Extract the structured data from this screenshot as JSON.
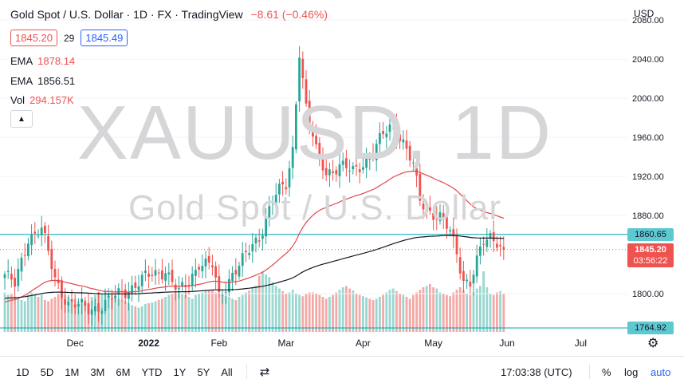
{
  "legend": {
    "symbol_name": "Gold Spot / U.S. Dollar",
    "interval": "1D",
    "exchange": "FX",
    "provider": "TradingView",
    "change": "−8.61 (−0.46%)"
  },
  "prices": {
    "bid": "1845.20",
    "spread": "29",
    "ask": "1845.49"
  },
  "indicators": [
    {
      "name": "EMA",
      "value": "1878.14",
      "color": "#ef5350"
    },
    {
      "name": "EMA",
      "value": "1856.51",
      "color": "#131722"
    },
    {
      "name": "Vol",
      "value": "294.157K",
      "color": "#ef5350"
    }
  ],
  "watermark": {
    "main": "XAUUSD, 1D",
    "sub": "Gold Spot / U.S. Dollar"
  },
  "axis": {
    "currency": "USD",
    "price_labels": [
      "2080.00",
      "2040.00",
      "2000.00",
      "1960.00",
      "1920.00",
      "1880.00",
      "1800.00"
    ],
    "horizontal_line_upper": "1860.65",
    "horizontal_line_lower": "1764.92",
    "last_price": "1845.20",
    "countdown": "03:56:22",
    "time_labels": [
      "Dec",
      "2022",
      "Feb",
      "Mar",
      "Apr",
      "May",
      "Jun",
      "Jul"
    ]
  },
  "toolbar": {
    "timeframes": [
      "1D",
      "5D",
      "1M",
      "3M",
      "6M",
      "YTD",
      "1Y",
      "5Y",
      "All"
    ],
    "clock": "17:03:38 (UTC)",
    "percent": "%",
    "log": "log",
    "auto": "auto"
  },
  "colors": {
    "up": "#26a69a",
    "down": "#ef5350",
    "hline": "#00a6b3",
    "ema_fast": "#e0474c",
    "ema_slow": "#131722",
    "accent": "#2962ff"
  },
  "chart_data": {
    "type": "candlestick",
    "ylim": [
      1760,
      2090
    ],
    "hlines": [
      1860.65,
      1764.92
    ],
    "last_price": 1845.2,
    "x_ticks": [
      {
        "label": "Dec",
        "index": 21
      },
      {
        "label": "2022",
        "index": 43
      },
      {
        "label": "Feb",
        "index": 64
      },
      {
        "label": "Mar",
        "index": 84
      },
      {
        "label": "Apr",
        "index": 107
      },
      {
        "label": "May",
        "index": 128
      },
      {
        "label": "Jun",
        "index": 150
      },
      {
        "label": "Jul",
        "index": 172
      }
    ],
    "anchors": [
      [
        0,
        1820
      ],
      [
        3,
        1808
      ],
      [
        7,
        1858
      ],
      [
        11,
        1866
      ],
      [
        15,
        1815
      ],
      [
        19,
        1790
      ],
      [
        25,
        1784
      ],
      [
        30,
        1790
      ],
      [
        36,
        1803
      ],
      [
        42,
        1816
      ],
      [
        45,
        1820
      ],
      [
        48,
        1825
      ],
      [
        52,
        1800
      ],
      [
        55,
        1812
      ],
      [
        58,
        1833
      ],
      [
        62,
        1828
      ],
      [
        64,
        1795
      ],
      [
        68,
        1822
      ],
      [
        72,
        1838
      ],
      [
        76,
        1858
      ],
      [
        80,
        1898
      ],
      [
        84,
        1910
      ],
      [
        86,
        1948
      ],
      [
        88,
        2050
      ],
      [
        90,
        1990
      ],
      [
        93,
        1945
      ],
      [
        96,
        1925
      ],
      [
        100,
        1930
      ],
      [
        104,
        1925
      ],
      [
        107,
        1935
      ],
      [
        110,
        1943
      ],
      [
        113,
        1962
      ],
      [
        116,
        1975
      ],
      [
        119,
        1955
      ],
      [
        122,
        1930
      ],
      [
        124,
        1895
      ],
      [
        127,
        1885
      ],
      [
        130,
        1878
      ],
      [
        133,
        1862
      ],
      [
        135,
        1842
      ],
      [
        137,
        1815
      ],
      [
        139,
        1812
      ],
      [
        141,
        1832
      ],
      [
        143,
        1852
      ],
      [
        145,
        1858
      ],
      [
        147,
        1856
      ],
      [
        149,
        1845.2
      ]
    ],
    "volume": {
      "values": [
        62,
        58,
        60,
        55,
        52,
        50,
        48,
        58,
        62,
        60,
        55,
        58,
        50,
        48,
        52,
        55,
        60,
        62,
        58,
        55,
        50,
        52,
        48,
        45,
        50,
        46,
        55,
        58,
        62,
        60,
        64,
        60,
        58,
        55,
        52,
        50,
        48,
        45,
        42,
        40,
        38,
        40,
        44,
        45,
        46,
        48,
        50,
        52,
        55,
        58,
        60,
        62,
        64,
        60,
        58,
        55,
        52,
        58,
        60,
        62,
        64,
        66,
        65,
        62,
        60,
        58,
        56,
        55,
        52,
        50,
        55,
        58,
        62,
        65,
        70,
        72,
        88,
        95,
        90,
        86,
        78,
        72,
        68,
        64,
        60,
        62,
        66,
        60,
        58,
        56,
        60,
        62,
        62,
        60,
        58,
        55,
        52,
        55,
        58,
        62,
        66,
        70,
        72,
        68,
        65,
        60,
        58,
        56,
        54,
        52,
        50,
        52,
        55,
        58,
        62,
        66,
        68,
        64,
        60,
        58,
        55,
        52,
        58,
        62,
        66,
        70,
        72,
        75,
        70,
        68,
        62,
        60,
        58,
        56,
        62,
        66,
        70,
        65,
        60,
        58,
        62,
        68,
        72,
        95,
        70,
        60,
        58,
        62,
        64,
        60,
        58,
        52
      ],
      "ylim": [
        0,
        100
      ]
    }
  }
}
